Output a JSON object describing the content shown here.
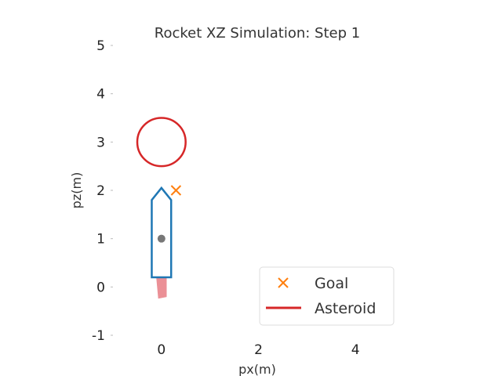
{
  "chart_data": {
    "type": "scatter",
    "title": "Rocket XZ Simulation: Step 1",
    "xlabel": "px(m)",
    "ylabel": "pz(m)",
    "xlim": [
      -1,
      5
    ],
    "ylim": [
      -1,
      5
    ],
    "x_ticks": [
      "0",
      "2",
      "4"
    ],
    "y_ticks": [
      "-1",
      "0",
      "1",
      "2",
      "3",
      "4",
      "5"
    ],
    "x_tick_values": [
      0,
      2,
      4
    ],
    "y_tick_values": [
      -1,
      0,
      1,
      2,
      3,
      4,
      5
    ],
    "grid": false,
    "legend_placement": "lower-right",
    "legend": [
      {
        "label": "Goal",
        "marker": "x",
        "color": "#ff7f0e"
      },
      {
        "label": "Asteroid",
        "marker": "line",
        "color": "#d62728"
      }
    ],
    "goal": {
      "x": 0.3,
      "z": 2.0
    },
    "asteroid": {
      "center_x": 0.0,
      "center_z": 3.0,
      "radius": 0.5
    },
    "rocket": {
      "center_x": 0.0,
      "center_z": 1.0,
      "body_bottom_z": 0.2,
      "body_top_z": 1.8,
      "nose_tip_z": 2.05,
      "half_width": 0.2,
      "flame_tip_x": 0.1,
      "flame_tip_z": -0.2
    },
    "colors": {
      "rocket": "#1f77b4",
      "asteroid": "#d62728",
      "goal": "#ff7f0e",
      "flame": "#e87d84",
      "center": "#777777"
    }
  }
}
